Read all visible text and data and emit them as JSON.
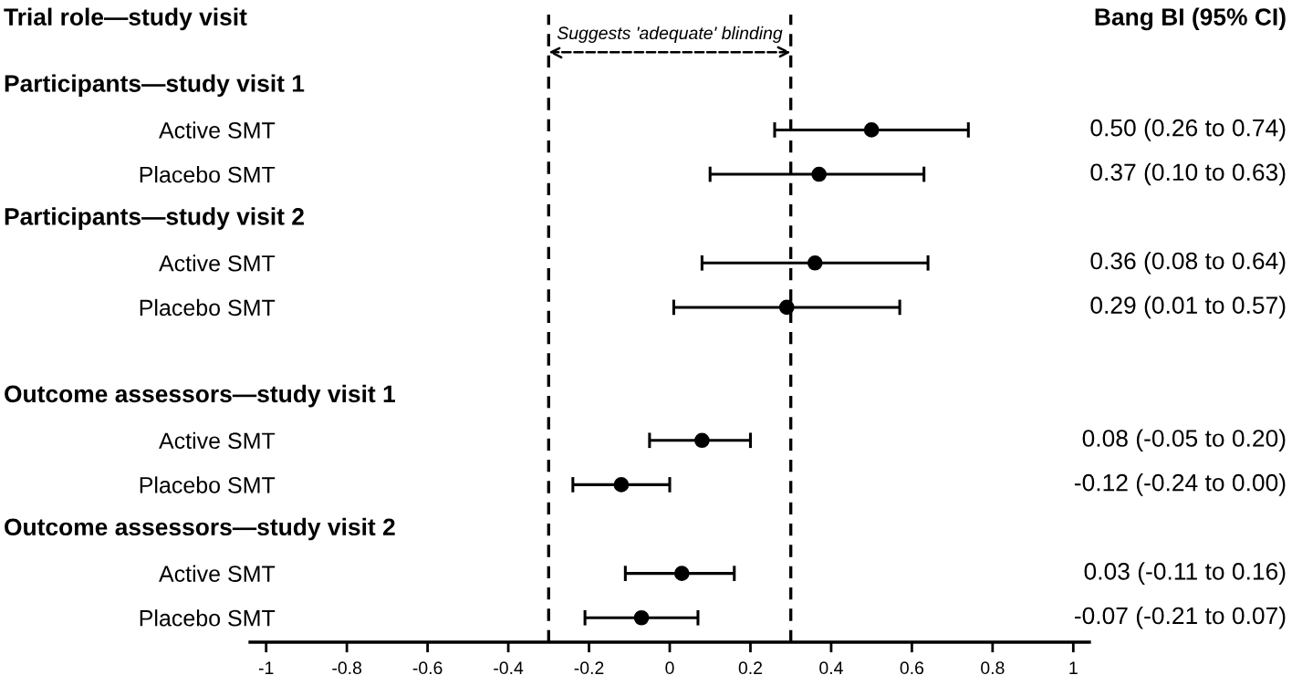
{
  "chart_data": {
    "type": "scatter",
    "orientation": "horizontal",
    "title": "Trial role—study visit",
    "categories": [
      null,
      "Active SMT",
      "Placebo SMT",
      null,
      "Active SMT",
      "Placebo SMT",
      null,
      null,
      "Active SMT",
      "Placebo SMT",
      null,
      "Active SMT",
      "Placebo SMT"
    ],
    "values": [
      null,
      0.5,
      0.37,
      null,
      0.36,
      0.29,
      null,
      null,
      0.08,
      -0.12,
      null,
      0.03,
      -0.07
    ],
    "errors": [
      null,
      [
        0.26,
        0.74
      ],
      [
        0.1,
        0.63
      ],
      null,
      [
        0.08,
        0.64
      ],
      [
        0.01,
        0.57
      ],
      null,
      null,
      [
        -0.05,
        0.2
      ],
      [
        -0.24,
        0.0
      ],
      null,
      [
        -0.11,
        0.16
      ],
      [
        -0.21,
        0.07
      ]
    ],
    "value_labels": [
      null,
      "0.50 (0.26 to 0.74)",
      "0.37 (0.10 to 0.63)",
      null,
      "0.36 (0.08 to 0.64)",
      "0.29 (0.01 to 0.57)",
      null,
      null,
      "0.08 (-0.05 to 0.20)",
      "-0.12 (-0.24 to 0.00)",
      null,
      "0.03 (-0.11 to 0.16)",
      "-0.07 (-0.21 to 0.07)"
    ],
    "color": "#000000",
    "marker": "circle",
    "grid": false,
    "xlim": [
      -1.04,
      1.04
    ],
    "xticks": [
      -1,
      -0.8,
      -0.6,
      -0.4,
      -0.2,
      0,
      0.2,
      0.4,
      0.6,
      0.8,
      1
    ],
    "ref_lines": [
      {
        "axis": "x",
        "value": -0.3,
        "color": "#000000",
        "line_style": "dashed"
      },
      {
        "axis": "x",
        "value": 0.3,
        "color": "#000000",
        "line_style": "dashed"
      }
    ],
    "annotations": [
      "Suggests 'adequate' blinding",
      "Bang BI (95% CI)",
      "Participants—study visit 1",
      "Participants—study visit 2",
      "Outcome assessors—study visit 1",
      "Outcome assessors—study visit 2"
    ]
  }
}
